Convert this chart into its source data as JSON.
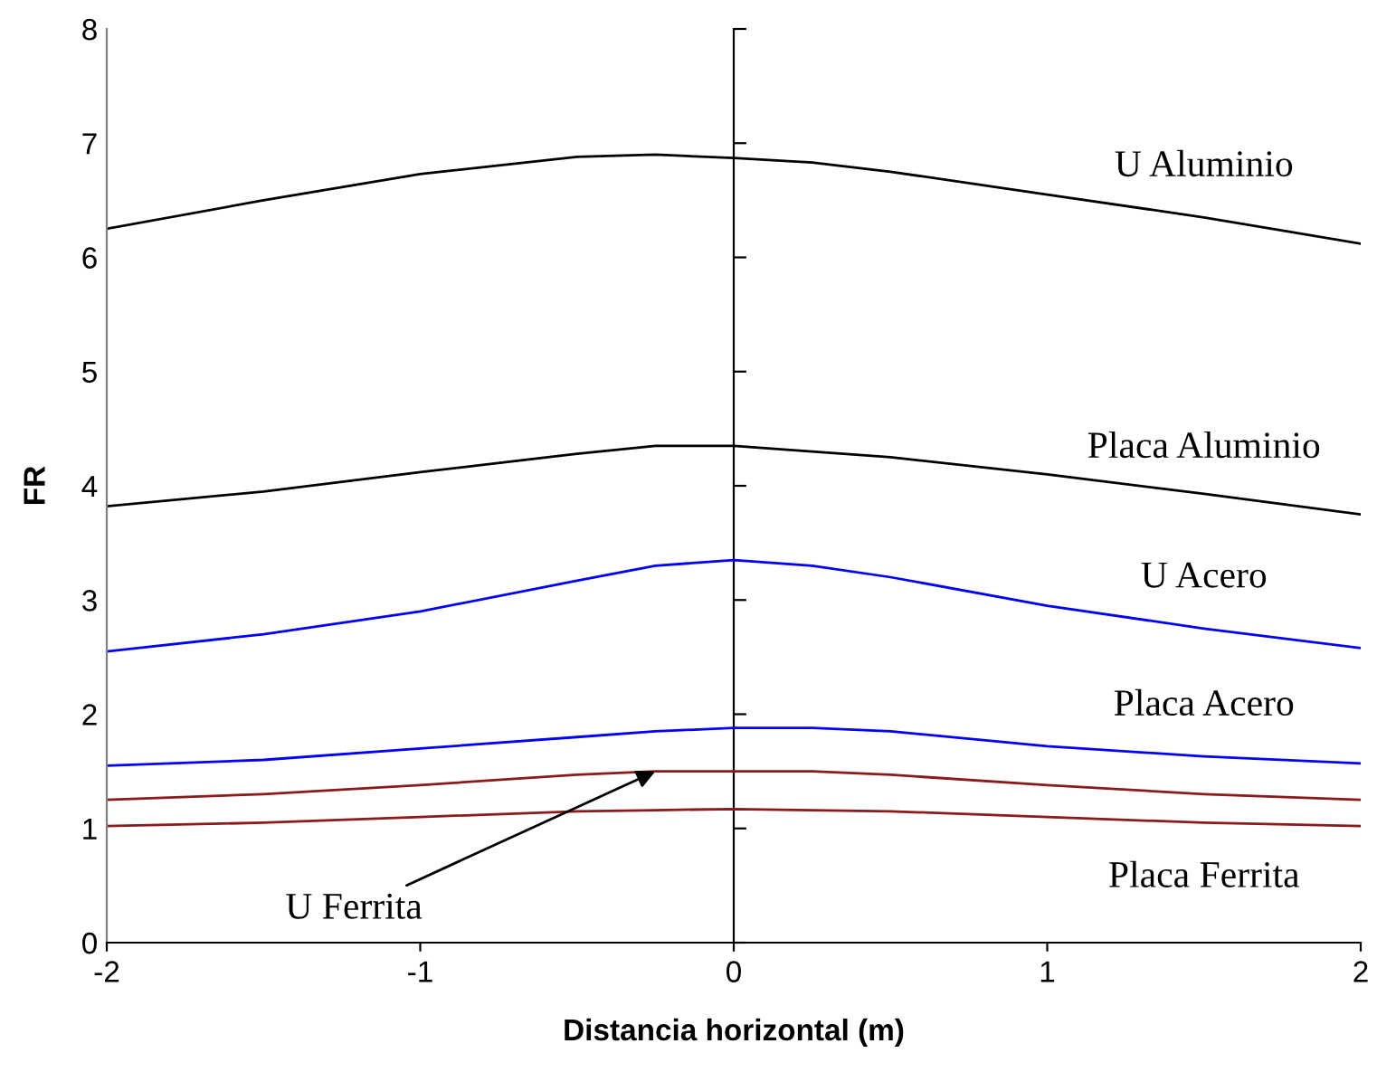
{
  "chart_data": {
    "type": "line",
    "xlabel": "Distancia horizontal (m)",
    "ylabel": "FR",
    "x": [
      -2,
      -1.5,
      -1,
      -0.5,
      -0.25,
      0,
      0.25,
      0.5,
      1,
      1.5,
      2
    ],
    "series": [
      {
        "name": "U Aluminio",
        "color": "#000000",
        "values": [
          6.25,
          6.5,
          6.73,
          6.88,
          6.9,
          6.87,
          6.83,
          6.75,
          6.55,
          6.35,
          6.12
        ]
      },
      {
        "name": "Placa Aluminio",
        "color": "#000000",
        "values": [
          3.82,
          3.95,
          4.12,
          4.28,
          4.35,
          4.35,
          4.3,
          4.25,
          4.1,
          3.93,
          3.75
        ]
      },
      {
        "name": "U Acero",
        "color": "#0000ff",
        "values": [
          2.55,
          2.7,
          2.9,
          3.17,
          3.3,
          3.35,
          3.3,
          3.2,
          2.95,
          2.75,
          2.58
        ]
      },
      {
        "name": "Placa Acero",
        "color": "#0000ff",
        "values": [
          1.55,
          1.6,
          1.7,
          1.8,
          1.85,
          1.88,
          1.88,
          1.85,
          1.72,
          1.63,
          1.57
        ]
      },
      {
        "name": "U Ferrita",
        "color": "#8b1a1a",
        "values": [
          1.25,
          1.3,
          1.38,
          1.47,
          1.5,
          1.5,
          1.5,
          1.47,
          1.38,
          1.3,
          1.25
        ]
      },
      {
        "name": "Placa Ferrita",
        "color": "#8b1a1a",
        "values": [
          1.02,
          1.05,
          1.1,
          1.15,
          1.16,
          1.17,
          1.16,
          1.15,
          1.1,
          1.05,
          1.02
        ]
      }
    ],
    "xlim": [
      -2,
      2
    ],
    "ylim": [
      0,
      8
    ],
    "xticks": [
      -2,
      -1,
      0,
      1,
      2
    ],
    "yticks": [
      0,
      1,
      2,
      3,
      4,
      5,
      6,
      7,
      8
    ],
    "legend": false,
    "marker": "none",
    "line_style": "solid"
  }
}
